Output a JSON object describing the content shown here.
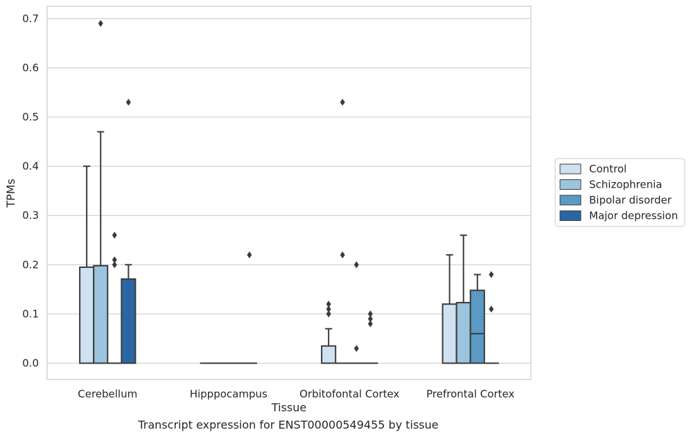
{
  "caption": "Transcript expression for ENST00000549455 by tissue",
  "chart_data": {
    "type": "box",
    "xlabel": "Tissue",
    "ylabel": "TPMs",
    "ylim": [
      -0.033,
      0.725
    ],
    "yticks": [
      0.0,
      0.1,
      0.2,
      0.3,
      0.4,
      0.5,
      0.6,
      0.7
    ],
    "ytick_labels": [
      "0.0",
      "0.1",
      "0.2",
      "0.3",
      "0.4",
      "0.5",
      "0.6",
      "0.7"
    ],
    "grid": "horizontal",
    "legend_position": "right",
    "categories": [
      "Cerebellum",
      "Hipppocampus",
      "Orbitofontal Cortex",
      "Prefrontal Cortex"
    ],
    "series": [
      {
        "name": "Control",
        "color": "#d0e1f0",
        "boxes": [
          {
            "min": 0,
            "q1": 0,
            "median": 0,
            "q3": 0.195,
            "max": 0.4,
            "outliers": []
          },
          {
            "min": 0,
            "q1": 0,
            "median": 0,
            "q3": 0,
            "max": 0,
            "outliers": []
          },
          {
            "min": 0,
            "q1": 0,
            "median": 0,
            "q3": 0.035,
            "max": 0.07,
            "outliers": [
              0.1,
              0.11,
              0.12
            ]
          },
          {
            "min": 0,
            "q1": 0,
            "median": 0,
            "q3": 0.12,
            "max": 0.22,
            "outliers": []
          }
        ]
      },
      {
        "name": "Schizophrenia",
        "color": "#9cc4de",
        "boxes": [
          {
            "min": 0,
            "q1": 0,
            "median": 0,
            "q3": 0.198,
            "max": 0.47,
            "outliers": [
              0.69
            ]
          },
          {
            "min": 0,
            "q1": 0,
            "median": 0,
            "q3": 0,
            "max": 0,
            "outliers": []
          },
          {
            "min": 0,
            "q1": 0,
            "median": 0,
            "q3": 0,
            "max": 0,
            "outliers": [
              0.22,
              0.53
            ]
          },
          {
            "min": 0,
            "q1": 0,
            "median": 0,
            "q3": 0.123,
            "max": 0.26,
            "outliers": []
          }
        ]
      },
      {
        "name": "Bipolar disorder",
        "color": "#5a9ac4",
        "boxes": [
          {
            "min": 0,
            "q1": 0,
            "median": 0,
            "q3": 0,
            "max": 0,
            "outliers": [
              0.2,
              0.21,
              0.26
            ]
          },
          {
            "min": 0,
            "q1": 0,
            "median": 0,
            "q3": 0,
            "max": 0,
            "outliers": []
          },
          {
            "min": 0,
            "q1": 0,
            "median": 0,
            "q3": 0,
            "max": 0,
            "outliers": [
              0.03,
              0.2
            ]
          },
          {
            "min": 0,
            "q1": 0,
            "median": 0.06,
            "q3": 0.148,
            "max": 0.18,
            "outliers": []
          }
        ]
      },
      {
        "name": "Major depression",
        "color": "#2a66a3",
        "boxes": [
          {
            "min": 0,
            "q1": 0,
            "median": 0,
            "q3": 0.171,
            "max": 0.2,
            "outliers": [
              0.53
            ]
          },
          {
            "min": 0,
            "q1": 0,
            "median": 0,
            "q3": 0,
            "max": 0,
            "outliers": [
              0.22
            ]
          },
          {
            "min": 0,
            "q1": 0,
            "median": 0,
            "q3": 0,
            "max": 0,
            "outliers": [
              0.08,
              0.09,
              0.1
            ]
          },
          {
            "min": 0,
            "q1": 0,
            "median": 0,
            "q3": 0,
            "max": 0,
            "outliers": [
              0.11,
              0.18
            ]
          }
        ]
      }
    ]
  }
}
